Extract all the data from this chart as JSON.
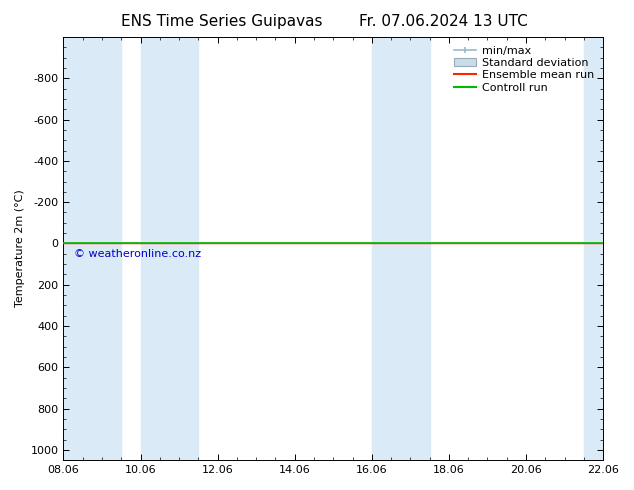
{
  "title_left": "ENS Time Series Guipavas",
  "title_right": "Fr. 07.06.2024 13 UTC",
  "ylabel": "Temperature 2m (°C)",
  "ylim": [
    -1000,
    1050
  ],
  "yticks": [
    -800,
    -600,
    -400,
    -200,
    0,
    200,
    400,
    600,
    800,
    1000
  ],
  "xtick_labels": [
    "08.06",
    "10.06",
    "12.06",
    "14.06",
    "16.06",
    "18.06",
    "20.06",
    "22.06"
  ],
  "xtick_positions": [
    0,
    2,
    4,
    6,
    8,
    10,
    12,
    14
  ],
  "shaded_bands": [
    [
      0,
      1.5
    ],
    [
      2.0,
      3.5
    ],
    [
      8.0,
      9.5
    ],
    [
      13.5,
      14.5
    ]
  ],
  "line_y": 0,
  "line_color_control": "#00bb00",
  "line_color_ensemble": "#ff2200",
  "band_color": "#daeaf7",
  "watermark": "© weatheronline.co.nz",
  "watermark_color": "#0000cc",
  "bg_color": "#ffffff",
  "plot_bg_color": "#ffffff",
  "font_size_title": 11,
  "font_size_axis": 8,
  "font_size_legend": 8,
  "font_size_watermark": 8,
  "legend_minmax_color": "#99bbcc",
  "legend_std_facecolor": "#c8dde8",
  "legend_std_edgecolor": "#99aabb"
}
